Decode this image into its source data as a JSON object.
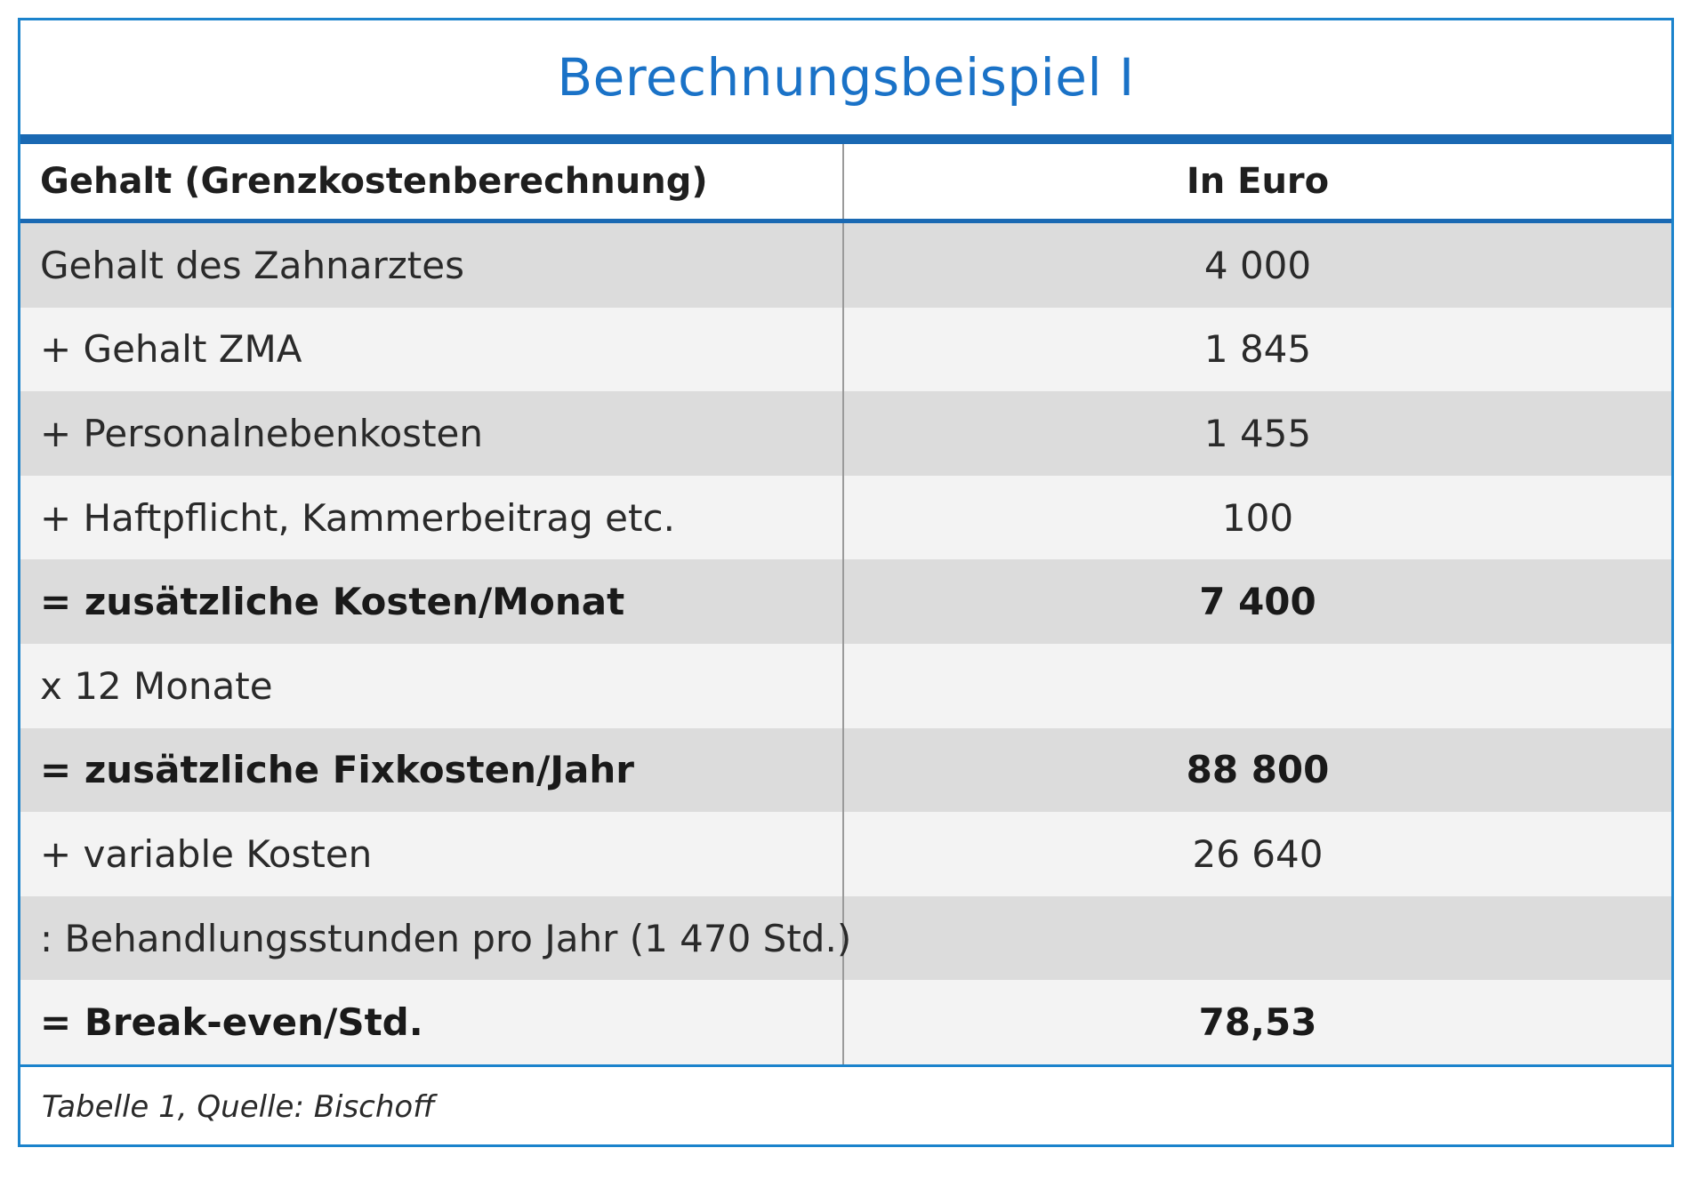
{
  "title": "Berechnungsbeispiel I",
  "header": {
    "left": "Gehalt (Grenzkostenberechnung)",
    "right": "In Euro"
  },
  "rows": [
    {
      "label": "Gehalt des Zahnarztes",
      "value": "4 000",
      "bold": false
    },
    {
      "label": "+ Gehalt ZMA",
      "value": "1 845",
      "bold": false
    },
    {
      "label": "+ Personalnebenkosten",
      "value": "1 455",
      "bold": false
    },
    {
      "label": "+ Haftpflicht, Kammerbeitrag etc.",
      "value": "100",
      "bold": false
    },
    {
      "label": "= zusätzliche Kosten/Monat",
      "value": "7 400",
      "bold": true
    },
    {
      "label": "x 12 Monate",
      "value": "",
      "bold": false
    },
    {
      "label": "= zusätzliche Fixkosten/Jahr",
      "value": "88 800",
      "bold": true
    },
    {
      "label": "+ variable Kosten",
      "value": "26 640",
      "bold": false
    },
    {
      "label": ": Behandlungsstunden pro Jahr (1 470 Std.)",
      "value": "",
      "bold": false
    },
    {
      "label": "= Break-even/Std.",
      "value": "78,53",
      "bold": true
    }
  ],
  "footnote": "Tabelle 1, Quelle: Bischoff",
  "colors": {
    "title": "#1a72c7",
    "rule": "#1a69b3",
    "frame": "#1b83cc",
    "row_shade": "#dcdcdc",
    "row_light": "#f3f3f3"
  }
}
